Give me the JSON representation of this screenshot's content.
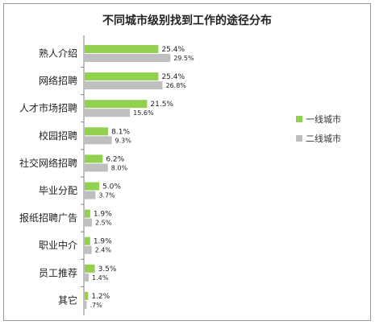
{
  "chart_data": {
    "type": "bar",
    "orientation": "horizontal",
    "title": "不同城市级别找到工作的途径分布",
    "categories": [
      "熟人介绍",
      "网络招聘",
      "人才市场招聘",
      "校园招聘",
      "社交网络招聘",
      "毕业分配",
      "报纸招聘广告",
      "职业中介",
      "员工推荐",
      "其它"
    ],
    "series": [
      {
        "name": "一线城市",
        "color": "#92d050",
        "values": [
          25.4,
          25.4,
          21.5,
          8.1,
          6.2,
          5.0,
          1.9,
          1.9,
          3.5,
          1.2
        ],
        "labels": [
          "25.4%",
          "25.4%",
          "21.5%",
          "8.1%",
          "6.2%",
          "5.0%",
          "1.9%",
          "1.9%",
          "3.5%",
          "1.2%"
        ]
      },
      {
        "name": "二线城市",
        "color": "#bfbfbf",
        "values": [
          29.5,
          26.8,
          15.6,
          9.3,
          8.0,
          3.7,
          2.5,
          2.4,
          1.4,
          0.7
        ],
        "labels": [
          "29.5%",
          "26.8%",
          "15.6%",
          "9.3%",
          "8.0%",
          "3.7%",
          "2.5%",
          "2.4%",
          "1.4%",
          ".7%"
        ]
      }
    ],
    "legend_position": "right",
    "grid": false,
    "xlim": [
      0,
      35
    ]
  }
}
